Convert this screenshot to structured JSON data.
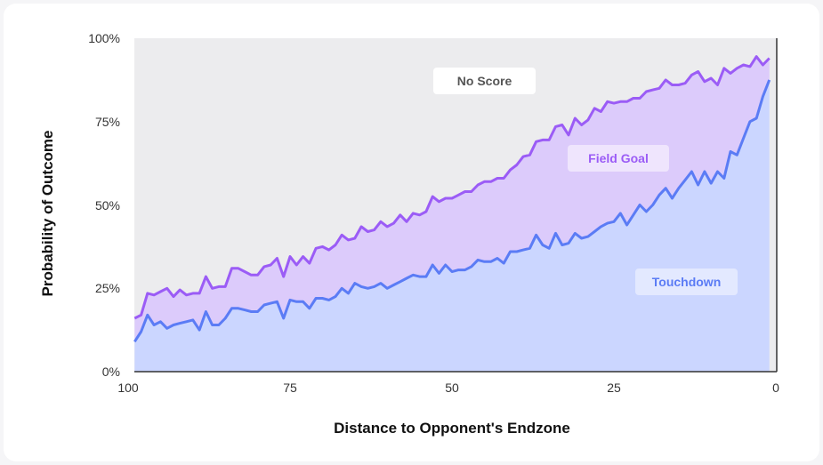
{
  "chart_data": {
    "type": "area",
    "title": "",
    "xlabel": "Distance to Opponent's Endzone",
    "ylabel": "Probability of Outcome",
    "xlim": [
      100,
      0
    ],
    "ylim": [
      0,
      100
    ],
    "x_ticks": [
      "100",
      "75",
      "50",
      "25",
      "0"
    ],
    "y_ticks": [
      "0%",
      "25%",
      "50%",
      "75%",
      "100%"
    ],
    "grid": false,
    "x": [
      99,
      98,
      97,
      96,
      95,
      94,
      93,
      92,
      91,
      90,
      89,
      88,
      87,
      86,
      85,
      84,
      83,
      82,
      81,
      80,
      79,
      78,
      77,
      76,
      75,
      74,
      73,
      72,
      71,
      70,
      69,
      68,
      67,
      66,
      65,
      64,
      63,
      62,
      61,
      60,
      59,
      58,
      57,
      56,
      55,
      54,
      53,
      52,
      51,
      50,
      49,
      48,
      47,
      46,
      45,
      44,
      43,
      42,
      41,
      40,
      39,
      38,
      37,
      36,
      35,
      34,
      33,
      32,
      31,
      30,
      29,
      28,
      27,
      26,
      25,
      24,
      23,
      22,
      21,
      20,
      19,
      18,
      17,
      16,
      15,
      14,
      13,
      12,
      11,
      10,
      9,
      8,
      7,
      6,
      5,
      4,
      3,
      2,
      1
    ],
    "series": [
      {
        "name": "Touchdown",
        "color": "#5b7cf5",
        "fill": "#cbd6ff",
        "values": [
          9,
          12,
          17,
          14,
          15,
          13,
          14,
          14.5,
          15,
          15.5,
          12.5,
          18,
          14,
          14,
          16,
          19,
          19,
          18.5,
          18,
          18,
          20,
          20.5,
          21,
          16,
          21.5,
          21,
          21,
          19,
          22,
          22,
          21.5,
          22.5,
          25,
          23.5,
          26.5,
          25.5,
          25,
          25.5,
          26.5,
          25,
          26,
          27,
          28,
          29,
          28.5,
          28.5,
          32,
          29.5,
          32,
          30,
          30.5,
          30.5,
          31.5,
          33.5,
          33,
          33,
          34,
          32.5,
          36,
          36,
          36.5,
          37,
          41,
          38,
          37,
          41.5,
          38,
          38.5,
          41.5,
          40,
          40.5,
          42,
          43.5,
          44.5,
          45,
          47.5,
          44,
          47,
          50,
          48,
          50,
          53,
          55,
          52,
          55,
          57.5,
          60,
          56,
          60,
          56.5,
          60,
          58,
          66,
          65,
          70,
          75,
          76,
          82.5,
          87.5
        ]
      },
      {
        "name": "Field Goal",
        "color": "#9b5cf6",
        "fill": "#dccbfb",
        "values": [
          16,
          17,
          23.5,
          23,
          24,
          25,
          22.5,
          24.5,
          23,
          23.5,
          23.5,
          28.5,
          25,
          25.5,
          25.5,
          31,
          31,
          30,
          29,
          29,
          31.5,
          32,
          34,
          28.5,
          34.5,
          32,
          34.5,
          32.5,
          37,
          37.5,
          36.5,
          38,
          41,
          39.5,
          40,
          43.5,
          42,
          42.5,
          45,
          43.5,
          44.5,
          47,
          45,
          47.5,
          47,
          48,
          52.5,
          51,
          52,
          52,
          53,
          54,
          54,
          56,
          57,
          57,
          58,
          58,
          60.5,
          62,
          64.5,
          65,
          69,
          69.5,
          69.5,
          73.5,
          74,
          71,
          76,
          74,
          75.5,
          79,
          78,
          81,
          80.5,
          81,
          81,
          82,
          82,
          84,
          84.5,
          85,
          87.5,
          86,
          86,
          86.5,
          89,
          90,
          87,
          88,
          86,
          91,
          89.5,
          91,
          92,
          91.5,
          94.5,
          92,
          94
        ]
      }
    ],
    "annotations": [
      {
        "text": "No Score",
        "bg": "#ffffff",
        "color": "#555555"
      },
      {
        "text": "Field Goal",
        "bg": "#efe5fd",
        "color": "#9b5cf6"
      },
      {
        "text": "Touchdown",
        "bg": "#e3e9ff",
        "color": "#5b7cf5"
      }
    ],
    "background_color": "#ececee"
  }
}
